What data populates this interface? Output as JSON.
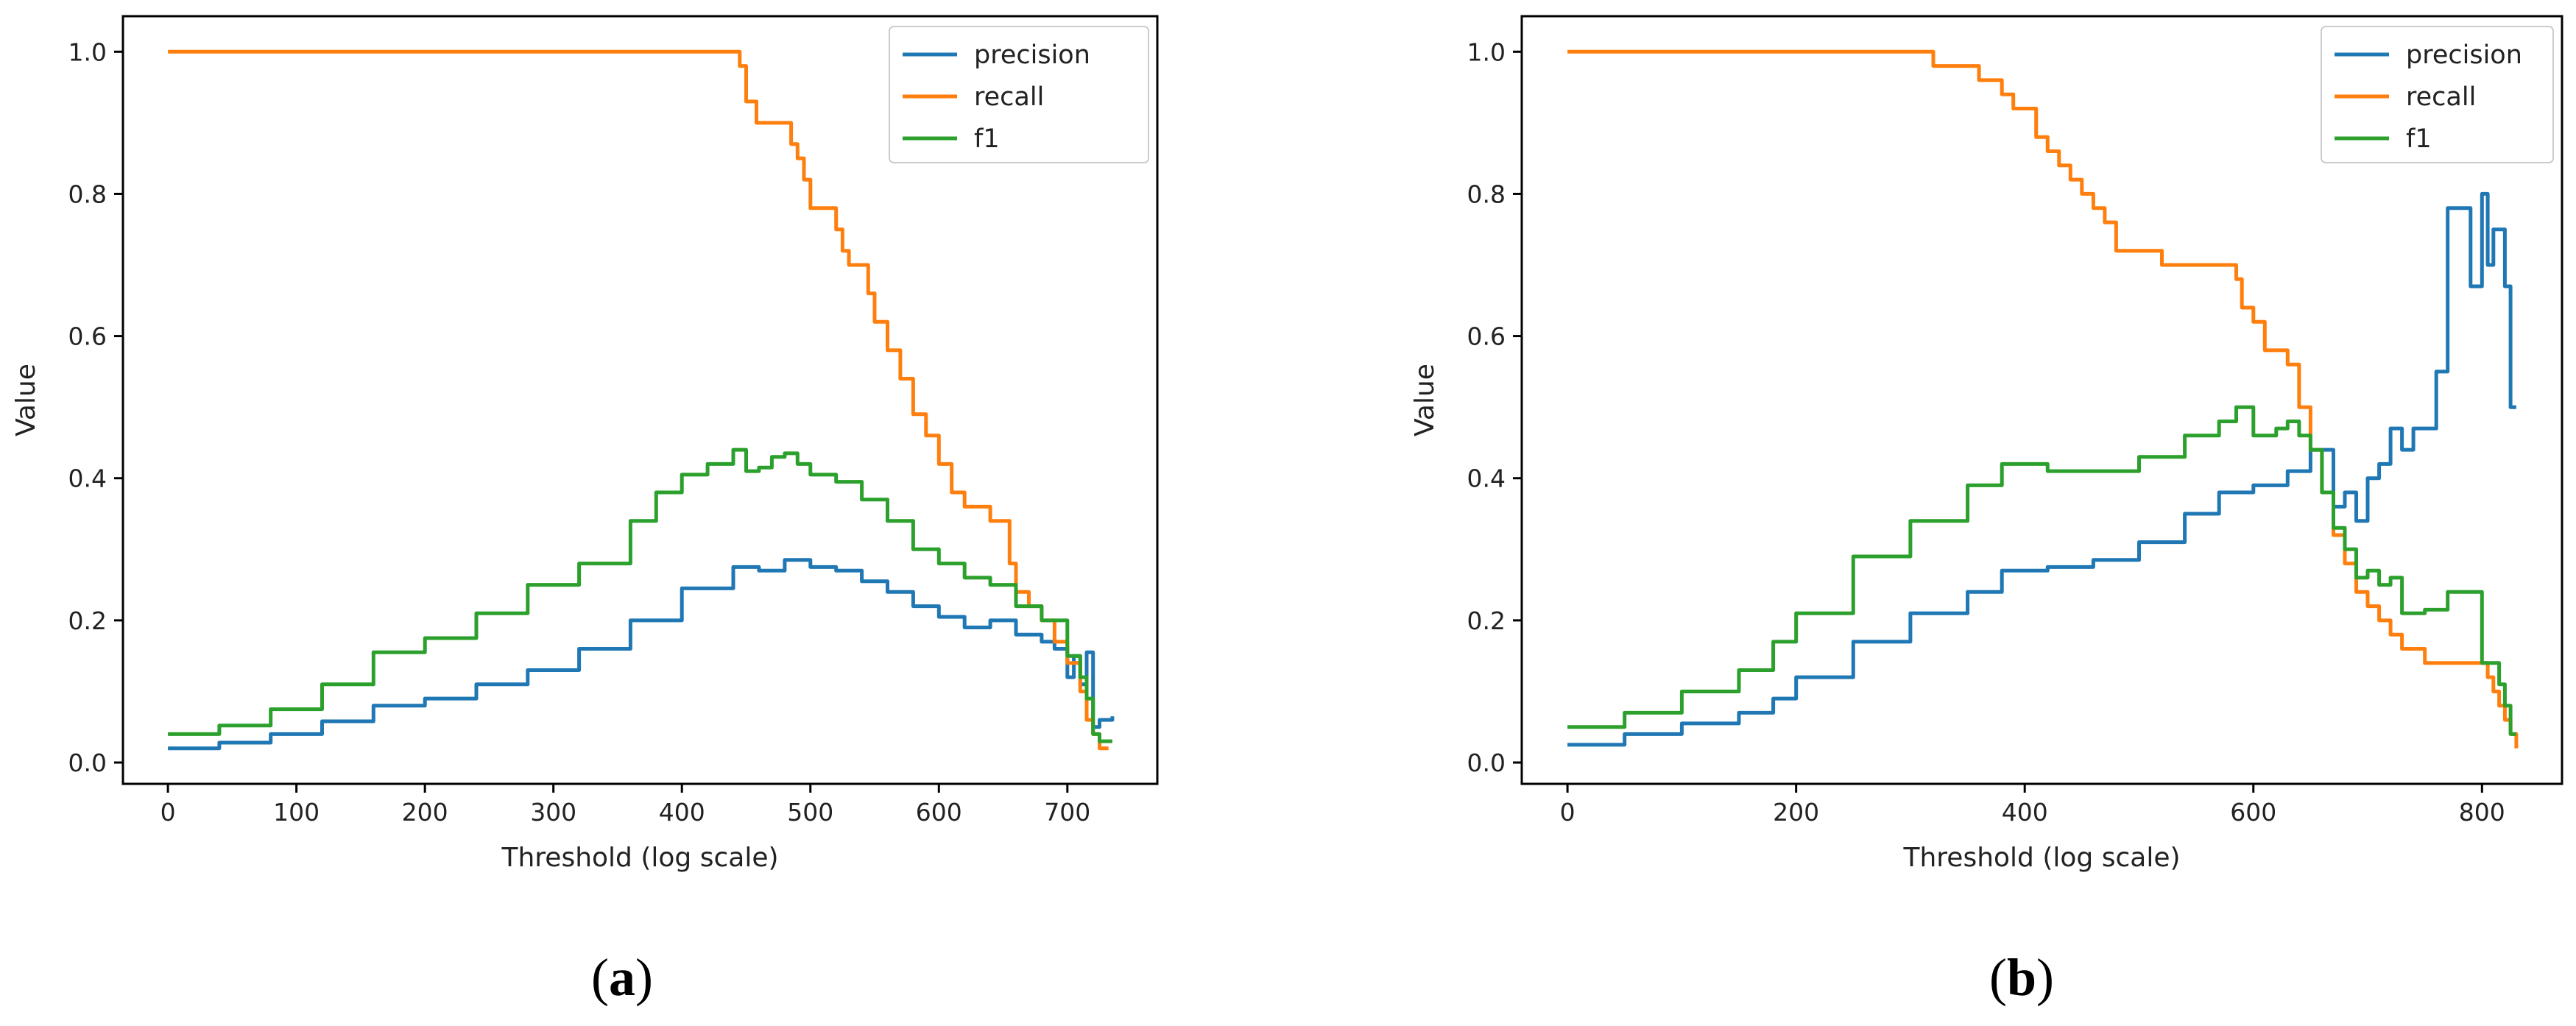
{
  "figure": {
    "colors": {
      "precision": "#1f77b4",
      "recall": "#ff7f0e",
      "f1": "#2ca02c",
      "axes": "#000000",
      "text": "#222222"
    }
  },
  "chart_data": [
    {
      "type": "line",
      "panel_label": "a",
      "xlabel": "Threshold (log scale)",
      "ylabel": "Value",
      "xlim": [
        -35,
        770
      ],
      "ylim": [
        -0.03,
        1.05
      ],
      "xticks": [
        0,
        100,
        200,
        300,
        400,
        500,
        600,
        700
      ],
      "yticks": [
        0.0,
        0.2,
        0.4,
        0.6,
        0.8,
        1.0
      ],
      "xtick_labels": [
        "0",
        "100",
        "200",
        "300",
        "400",
        "500",
        "600",
        "700"
      ],
      "ytick_labels": [
        "0.0",
        "0.2",
        "0.4",
        "0.6",
        "0.8",
        "1.0"
      ],
      "grid": false,
      "legend_position": "top-right",
      "series": [
        {
          "name": "precision",
          "x": [
            0,
            40,
            80,
            120,
            160,
            200,
            240,
            280,
            320,
            360,
            400,
            440,
            460,
            480,
            500,
            520,
            540,
            560,
            580,
            600,
            620,
            640,
            660,
            680,
            690,
            700,
            705,
            710,
            715,
            720,
            725,
            735
          ],
          "y": [
            0.02,
            0.028,
            0.04,
            0.058,
            0.08,
            0.09,
            0.11,
            0.13,
            0.16,
            0.2,
            0.245,
            0.275,
            0.27,
            0.285,
            0.275,
            0.27,
            0.255,
            0.24,
            0.22,
            0.205,
            0.19,
            0.2,
            0.18,
            0.17,
            0.16,
            0.12,
            0.15,
            0.11,
            0.155,
            0.05,
            0.06,
            0.065
          ]
        },
        {
          "name": "recall",
          "x": [
            0,
            440,
            445,
            450,
            458,
            480,
            485,
            490,
            495,
            500,
            505,
            520,
            525,
            530,
            545,
            550,
            560,
            570,
            580,
            590,
            600,
            610,
            620,
            635,
            640,
            655,
            660,
            670,
            680,
            690,
            700,
            710,
            715,
            720,
            725,
            732
          ],
          "y": [
            1.0,
            1.0,
            0.98,
            0.93,
            0.9,
            0.9,
            0.87,
            0.85,
            0.82,
            0.78,
            0.78,
            0.75,
            0.72,
            0.7,
            0.66,
            0.62,
            0.58,
            0.54,
            0.49,
            0.46,
            0.42,
            0.38,
            0.36,
            0.36,
            0.34,
            0.28,
            0.24,
            0.22,
            0.2,
            0.17,
            0.14,
            0.1,
            0.06,
            0.04,
            0.02,
            0.02
          ]
        },
        {
          "name": "f1",
          "x": [
            0,
            40,
            80,
            120,
            160,
            200,
            240,
            280,
            320,
            360,
            380,
            400,
            420,
            440,
            450,
            460,
            470,
            480,
            490,
            500,
            520,
            540,
            560,
            580,
            600,
            620,
            640,
            660,
            680,
            700,
            710,
            715,
            720,
            725,
            735
          ],
          "y": [
            0.04,
            0.052,
            0.075,
            0.11,
            0.155,
            0.175,
            0.21,
            0.25,
            0.28,
            0.34,
            0.38,
            0.405,
            0.42,
            0.44,
            0.41,
            0.415,
            0.43,
            0.435,
            0.42,
            0.405,
            0.395,
            0.37,
            0.34,
            0.3,
            0.28,
            0.26,
            0.25,
            0.22,
            0.2,
            0.15,
            0.12,
            0.09,
            0.04,
            0.03,
            0.03
          ]
        }
      ]
    },
    {
      "type": "line",
      "panel_label": "b",
      "xlabel": "Threshold (log scale)",
      "ylabel": "Value",
      "xlim": [
        -40,
        870
      ],
      "ylim": [
        -0.03,
        1.05
      ],
      "xticks": [
        0,
        200,
        400,
        600,
        800
      ],
      "yticks": [
        0.0,
        0.2,
        0.4,
        0.6,
        0.8,
        1.0
      ],
      "xtick_labels": [
        "0",
        "200",
        "400",
        "600",
        "800"
      ],
      "ytick_labels": [
        "0.0",
        "0.2",
        "0.4",
        "0.6",
        "0.8",
        "1.0"
      ],
      "grid": false,
      "legend_position": "top-right",
      "series": [
        {
          "name": "precision",
          "x": [
            0,
            50,
            100,
            150,
            180,
            200,
            250,
            300,
            350,
            380,
            420,
            460,
            500,
            540,
            570,
            600,
            630,
            650,
            670,
            680,
            690,
            700,
            710,
            720,
            730,
            740,
            750,
            760,
            770,
            780,
            790,
            800,
            805,
            810,
            815,
            820,
            825,
            830
          ],
          "y": [
            0.025,
            0.04,
            0.055,
            0.07,
            0.09,
            0.12,
            0.17,
            0.21,
            0.24,
            0.27,
            0.275,
            0.285,
            0.31,
            0.35,
            0.38,
            0.39,
            0.41,
            0.44,
            0.36,
            0.38,
            0.34,
            0.4,
            0.42,
            0.47,
            0.44,
            0.47,
            0.47,
            0.55,
            0.78,
            0.78,
            0.67,
            0.8,
            0.7,
            0.75,
            0.75,
            0.67,
            0.5,
            0.5
          ]
        },
        {
          "name": "recall",
          "x": [
            0,
            310,
            320,
            345,
            360,
            375,
            380,
            390,
            400,
            410,
            420,
            430,
            440,
            450,
            460,
            470,
            480,
            500,
            520,
            550,
            580,
            585,
            590,
            600,
            610,
            620,
            630,
            640,
            650,
            660,
            670,
            680,
            690,
            700,
            710,
            720,
            730,
            750,
            770,
            790,
            800,
            805,
            810,
            815,
            820,
            825,
            830
          ],
          "y": [
            1.0,
            1.0,
            0.98,
            0.98,
            0.96,
            0.96,
            0.94,
            0.92,
            0.92,
            0.88,
            0.86,
            0.84,
            0.82,
            0.8,
            0.78,
            0.76,
            0.72,
            0.72,
            0.7,
            0.7,
            0.7,
            0.68,
            0.64,
            0.62,
            0.58,
            0.58,
            0.56,
            0.5,
            0.44,
            0.38,
            0.32,
            0.28,
            0.24,
            0.22,
            0.2,
            0.18,
            0.16,
            0.14,
            0.14,
            0.14,
            0.14,
            0.12,
            0.1,
            0.08,
            0.06,
            0.04,
            0.02
          ]
        },
        {
          "name": "f1",
          "x": [
            0,
            50,
            100,
            150,
            180,
            200,
            250,
            300,
            350,
            380,
            420,
            460,
            500,
            540,
            570,
            585,
            600,
            620,
            630,
            640,
            650,
            660,
            670,
            680,
            690,
            700,
            710,
            720,
            730,
            750,
            770,
            790,
            800,
            810,
            815,
            820,
            825,
            830
          ],
          "y": [
            0.05,
            0.07,
            0.1,
            0.13,
            0.17,
            0.21,
            0.29,
            0.34,
            0.39,
            0.42,
            0.41,
            0.41,
            0.43,
            0.46,
            0.48,
            0.5,
            0.46,
            0.47,
            0.48,
            0.46,
            0.44,
            0.38,
            0.33,
            0.3,
            0.26,
            0.27,
            0.25,
            0.26,
            0.21,
            0.215,
            0.24,
            0.24,
            0.14,
            0.14,
            0.11,
            0.08,
            0.04,
            0.04
          ]
        }
      ]
    }
  ]
}
